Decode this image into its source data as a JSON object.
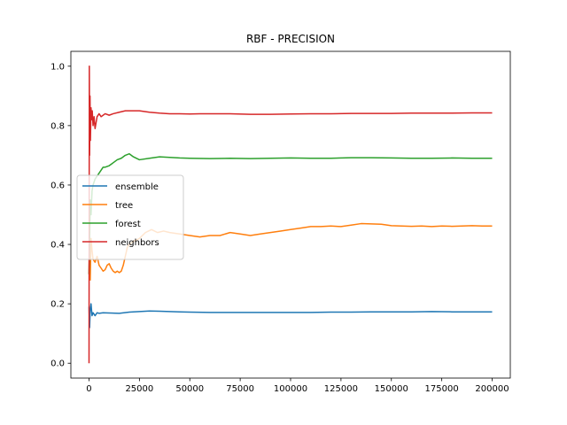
{
  "chart_data": {
    "type": "line",
    "title": "RBF - PRECISION",
    "xlabel": "",
    "ylabel": "",
    "xlim": [
      -9000,
      209000
    ],
    "ylim": [
      -0.05,
      1.05
    ],
    "xticks": [
      0,
      25000,
      50000,
      75000,
      100000,
      125000,
      150000,
      175000,
      200000
    ],
    "xtick_labels": [
      "0",
      "25000",
      "50000",
      "75000",
      "100000",
      "125000",
      "150000",
      "175000",
      "200000"
    ],
    "yticks": [
      0.0,
      0.2,
      0.4,
      0.6,
      0.8,
      1.0
    ],
    "ytick_labels": [
      "0.0",
      "0.2",
      "0.4",
      "0.6",
      "0.8",
      "1.0"
    ],
    "grid": false,
    "legend_position": "center-left",
    "series": [
      {
        "name": "ensemble",
        "color": "#1f77b4",
        "x": [
          0,
          300,
          600,
          1000,
          1500,
          2000,
          3000,
          4000,
          5000,
          7000,
          10000,
          15000,
          20000,
          25000,
          30000,
          35000,
          40000,
          45000,
          50000,
          60000,
          70000,
          80000,
          90000,
          100000,
          110000,
          120000,
          130000,
          140000,
          150000,
          160000,
          170000,
          180000,
          190000,
          200000
        ],
        "y": [
          0.19,
          0.12,
          0.18,
          0.2,
          0.16,
          0.17,
          0.16,
          0.17,
          0.168,
          0.17,
          0.169,
          0.168,
          0.172,
          0.174,
          0.176,
          0.175,
          0.174,
          0.173,
          0.172,
          0.171,
          0.171,
          0.171,
          0.171,
          0.171,
          0.171,
          0.172,
          0.172,
          0.173,
          0.173,
          0.173,
          0.174,
          0.173,
          0.173,
          0.173
        ]
      },
      {
        "name": "tree",
        "color": "#ff7f0e",
        "x": [
          0,
          300,
          600,
          1000,
          1500,
          2000,
          3000,
          4000,
          5000,
          6000,
          7000,
          8000,
          9000,
          10000,
          11000,
          12000,
          13000,
          14000,
          15000,
          16000,
          17000,
          18000,
          19000,
          20000,
          22000,
          25000,
          28000,
          31000,
          34000,
          37000,
          40000,
          45000,
          50000,
          55000,
          60000,
          65000,
          70000,
          75000,
          80000,
          85000,
          90000,
          95000,
          100000,
          105000,
          110000,
          115000,
          120000,
          125000,
          130000,
          135000,
          140000,
          145000,
          150000,
          155000,
          160000,
          165000,
          170000,
          175000,
          180000,
          185000,
          190000,
          195000,
          200000
        ],
        "y": [
          0.3,
          0.45,
          0.28,
          0.42,
          0.38,
          0.35,
          0.34,
          0.36,
          0.33,
          0.32,
          0.31,
          0.315,
          0.33,
          0.335,
          0.32,
          0.31,
          0.305,
          0.31,
          0.305,
          0.31,
          0.33,
          0.36,
          0.39,
          0.4,
          0.41,
          0.42,
          0.44,
          0.45,
          0.44,
          0.445,
          0.44,
          0.435,
          0.43,
          0.425,
          0.43,
          0.43,
          0.44,
          0.435,
          0.43,
          0.435,
          0.44,
          0.445,
          0.45,
          0.455,
          0.46,
          0.46,
          0.462,
          0.46,
          0.465,
          0.47,
          0.469,
          0.468,
          0.463,
          0.462,
          0.461,
          0.462,
          0.46,
          0.462,
          0.461,
          0.462,
          0.463,
          0.462,
          0.462
        ]
      },
      {
        "name": "forest",
        "color": "#2ca02c",
        "x": [
          0,
          300,
          600,
          1000,
          1500,
          2000,
          3000,
          4000,
          5000,
          6000,
          7000,
          8000,
          10000,
          12000,
          14000,
          16000,
          18000,
          20000,
          22000,
          25000,
          30000,
          35000,
          40000,
          45000,
          50000,
          60000,
          70000,
          80000,
          90000,
          100000,
          110000,
          120000,
          130000,
          140000,
          150000,
          160000,
          170000,
          180000,
          190000,
          200000
        ],
        "y": [
          0.3,
          0.4,
          0.55,
          0.5,
          0.58,
          0.6,
          0.62,
          0.63,
          0.64,
          0.65,
          0.66,
          0.66,
          0.665,
          0.675,
          0.685,
          0.69,
          0.7,
          0.705,
          0.695,
          0.685,
          0.69,
          0.695,
          0.693,
          0.691,
          0.69,
          0.689,
          0.69,
          0.689,
          0.69,
          0.691,
          0.69,
          0.69,
          0.692,
          0.692,
          0.691,
          0.69,
          0.69,
          0.691,
          0.69,
          0.69
        ]
      },
      {
        "name": "neighbors",
        "color": "#d62728",
        "x": [
          0,
          150,
          300,
          500,
          700,
          1000,
          1300,
          1600,
          2000,
          2500,
          3000,
          3500,
          4000,
          5000,
          6000,
          7000,
          8000,
          10000,
          12000,
          15000,
          18000,
          20000,
          25000,
          30000,
          35000,
          40000,
          45000,
          50000,
          55000,
          60000,
          70000,
          80000,
          90000,
          100000,
          110000,
          120000,
          130000,
          140000,
          150000,
          160000,
          170000,
          180000,
          190000,
          200000
        ],
        "y": [
          0.0,
          1.0,
          0.7,
          0.9,
          0.75,
          0.86,
          0.82,
          0.85,
          0.8,
          0.83,
          0.79,
          0.81,
          0.83,
          0.84,
          0.83,
          0.835,
          0.84,
          0.835,
          0.84,
          0.845,
          0.85,
          0.85,
          0.85,
          0.845,
          0.842,
          0.84,
          0.84,
          0.839,
          0.84,
          0.84,
          0.84,
          0.838,
          0.838,
          0.839,
          0.84,
          0.84,
          0.841,
          0.841,
          0.841,
          0.842,
          0.842,
          0.842,
          0.843,
          0.843
        ]
      }
    ]
  }
}
